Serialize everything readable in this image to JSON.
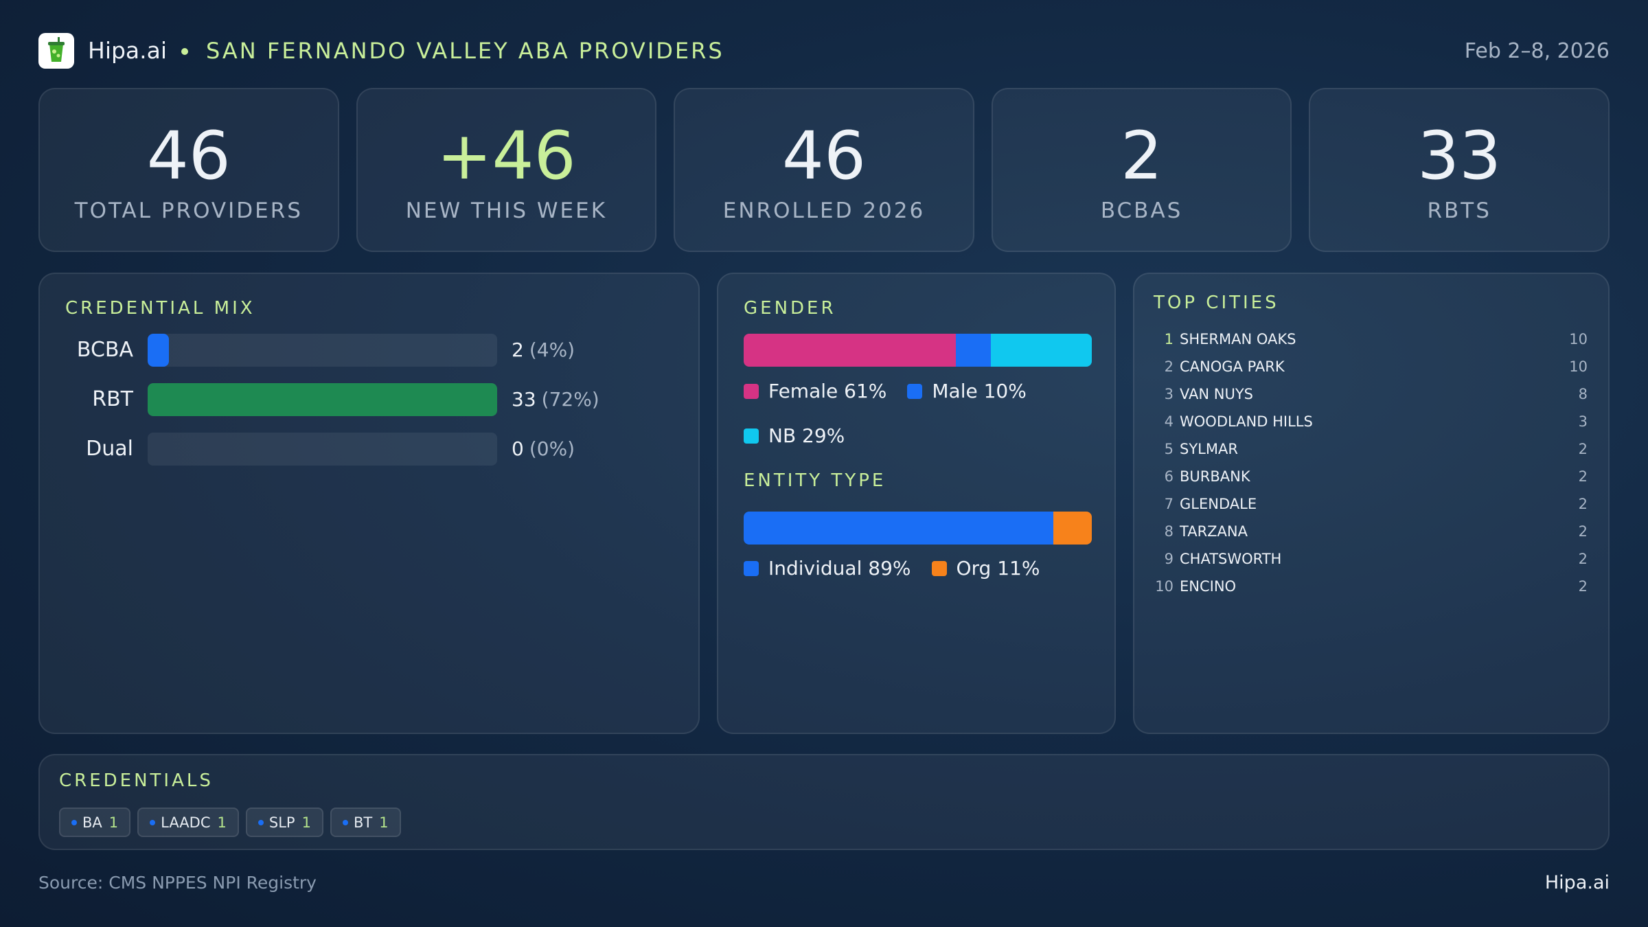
{
  "header": {
    "brand": "Hipa.ai",
    "title": "SAN FERNANDO VALLEY ABA PROVIDERS",
    "date": "Feb 2–8, 2026"
  },
  "kpis": [
    {
      "value": 46,
      "label": "TOTAL PROVIDERS"
    },
    {
      "value": "+46",
      "label": "NEW THIS WEEK",
      "highlight": true
    },
    {
      "value": 46,
      "label": "ENROLLED 2026"
    },
    {
      "value": 2,
      "label": "BCBAS"
    },
    {
      "value": 33,
      "label": "RBTS"
    }
  ],
  "credential_mix": {
    "title": "CREDENTIAL MIX",
    "rows": [
      {
        "label": "BCBA",
        "value": 2,
        "share": "(4%)",
        "color": "#1a6ef5"
      },
      {
        "label": "RBT",
        "value": 33,
        "share": "(72%)",
        "color": "#1e8a52"
      },
      {
        "label": "Dual",
        "value": 0,
        "share": "(0%)",
        "color": "#8b5cf6"
      }
    ]
  },
  "gender": {
    "title": "GENDER",
    "segments": [
      {
        "label": "Female 61%",
        "value": 61,
        "color": "#d63384"
      },
      {
        "label": "Male 10%",
        "value": 10,
        "color": "#1a6ef5"
      },
      {
        "label": "NB 29%",
        "value": 29,
        "color": "#10c8ef"
      }
    ]
  },
  "entity_type": {
    "title": "ENTITY TYPE",
    "segments": [
      {
        "label": "Individual 89%",
        "value": 89,
        "color": "#1a6ef5"
      },
      {
        "label": "Org 11%",
        "value": 11,
        "color": "#f7821b"
      }
    ]
  },
  "top_cities": {
    "title": "TOP CITIES",
    "rows": [
      {
        "rank": 1,
        "name": "SHERMAN OAKS",
        "count": 10
      },
      {
        "rank": 2,
        "name": "CANOGA PARK",
        "count": 10
      },
      {
        "rank": 3,
        "name": "VAN NUYS",
        "count": 8
      },
      {
        "rank": 4,
        "name": "WOODLAND HILLS",
        "count": 3
      },
      {
        "rank": 5,
        "name": "SYLMAR",
        "count": 2
      },
      {
        "rank": 6,
        "name": "BURBANK",
        "count": 2
      },
      {
        "rank": 7,
        "name": "GLENDALE",
        "count": 2
      },
      {
        "rank": 8,
        "name": "TARZANA",
        "count": 2
      },
      {
        "rank": 9,
        "name": "CHATSWORTH",
        "count": 2
      },
      {
        "rank": 10,
        "name": "ENCINO",
        "count": 2
      }
    ]
  },
  "credentials": {
    "title": "CREDENTIALS",
    "chips": [
      {
        "name": "BA",
        "count": 1
      },
      {
        "name": "LAADC",
        "count": 1
      },
      {
        "name": "SLP",
        "count": 1
      },
      {
        "name": "BT",
        "count": 1
      }
    ]
  },
  "footer": {
    "source": "Source: CMS NPPES NPI Registry",
    "brand": "Hipa.ai"
  }
}
